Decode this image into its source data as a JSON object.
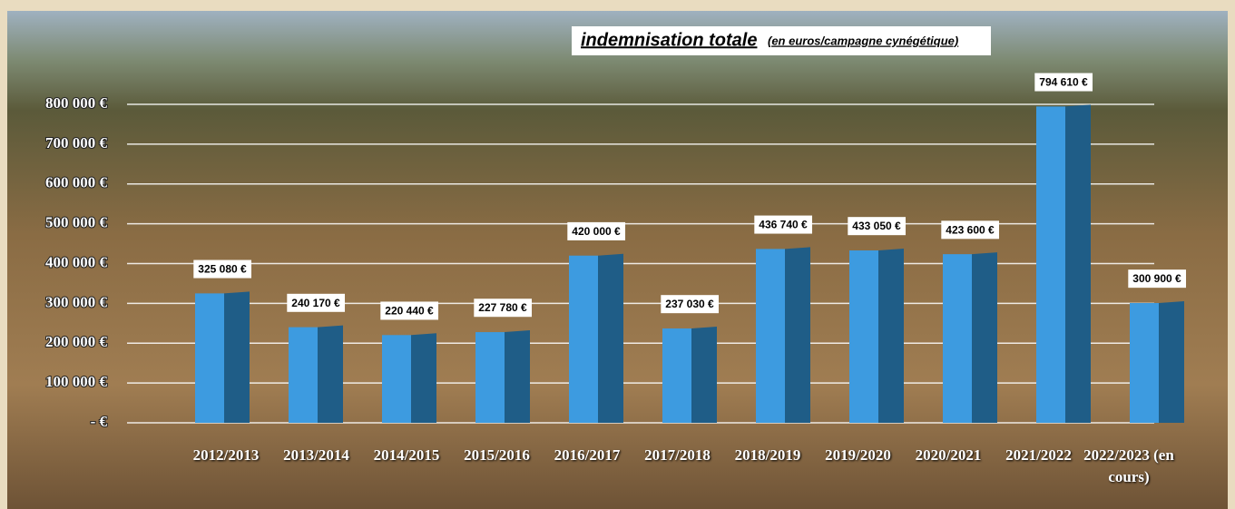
{
  "chart_data": {
    "type": "bar",
    "title": "indemnisation totale",
    "subtitle": "(en euros/campagne cynégétique)",
    "categories": [
      "2012/2013",
      "2013/2014",
      "2014/2015",
      "2015/2016",
      "2016/2017",
      "2017/2018",
      "2018/2019",
      "2019/2020",
      "2020/2021",
      "2021/2022",
      "2022/2023 (en cours)"
    ],
    "values": [
      325080,
      240170,
      220440,
      227780,
      420000,
      237030,
      436740,
      433050,
      423600,
      794610,
      300900
    ],
    "value_labels": [
      "325 080 €",
      "240 170 €",
      "220 440 €",
      "227 780 €",
      "420 000 €",
      "237 030 €",
      "436 740 €",
      "433 050 €",
      "423 600 €",
      "794 610 €",
      "300 900 €"
    ],
    "color": "#3d9be0",
    "ylim": [
      0,
      800000
    ],
    "yticks": [
      {
        "value": 0,
        "label": "- €"
      },
      {
        "value": 100000,
        "label": "100 000 €"
      },
      {
        "value": 200000,
        "label": "200 000 €"
      },
      {
        "value": 300000,
        "label": "300 000 €"
      },
      {
        "value": 400000,
        "label": "400 000 €"
      },
      {
        "value": 500000,
        "label": "500 000 €"
      },
      {
        "value": 600000,
        "label": "600 000 €"
      },
      {
        "value": 700000,
        "label": "700 000 €"
      },
      {
        "value": 800000,
        "label": "800 000 €"
      }
    ],
    "grid": true
  }
}
